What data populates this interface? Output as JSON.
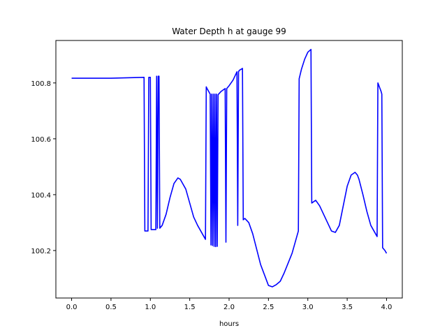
{
  "chart_data": {
    "type": "line",
    "title": "Water Depth h at gauge 99",
    "xlabel": "hours",
    "ylabel": "",
    "xlim": [
      -0.2,
      4.2
    ],
    "ylim": [
      100.03,
      100.952
    ],
    "xticks": [
      0.0,
      0.5,
      1.0,
      1.5,
      2.0,
      2.5,
      3.0,
      3.5,
      4.0
    ],
    "xtick_labels": [
      "0.0",
      "0.5",
      "1.0",
      "1.5",
      "2.0",
      "2.5",
      "3.0",
      "3.5",
      "4.0"
    ],
    "yticks": [
      100.2,
      100.4,
      100.6,
      100.8
    ],
    "ytick_labels": [
      "100.2",
      "100.4",
      "100.6",
      "100.8"
    ],
    "grid": false,
    "legend": "none",
    "series": [
      {
        "color": "#0000ff",
        "x": [
          0.0,
          0.5,
          0.92,
          0.93,
          0.97,
          0.98,
          1.0,
          1.01,
          1.07,
          1.08,
          1.09,
          1.1,
          1.11,
          1.12,
          1.15,
          1.2,
          1.25,
          1.3,
          1.35,
          1.38,
          1.45,
          1.5,
          1.55,
          1.6,
          1.7,
          1.71,
          1.72,
          1.76,
          1.77,
          1.78,
          1.79,
          1.8,
          1.81,
          1.82,
          1.83,
          1.84,
          1.85,
          1.86,
          1.9,
          1.95,
          1.96,
          1.97,
          2.0,
          2.05,
          2.1,
          2.11,
          2.12,
          2.13,
          2.17,
          2.18,
          2.2,
          2.25,
          2.3,
          2.4,
          2.5,
          2.55,
          2.6,
          2.65,
          2.7,
          2.8,
          2.88,
          2.89,
          2.92,
          2.96,
          3.0,
          3.04,
          3.05,
          3.1,
          3.15,
          3.2,
          3.3,
          3.35,
          3.4,
          3.45,
          3.5,
          3.55,
          3.6,
          3.63,
          3.65,
          3.7,
          3.75,
          3.8,
          3.88,
          3.89,
          3.93,
          3.94,
          3.95,
          3.98,
          4.0
        ],
        "y": [
          100.817,
          100.817,
          100.82,
          100.27,
          100.27,
          100.82,
          100.82,
          100.275,
          100.275,
          100.824,
          100.28,
          100.824,
          100.824,
          100.28,
          100.29,
          100.33,
          100.39,
          100.44,
          100.46,
          100.455,
          100.42,
          100.37,
          100.32,
          100.29,
          100.24,
          100.786,
          100.78,
          100.76,
          100.22,
          100.76,
          100.218,
          100.76,
          100.215,
          100.76,
          100.214,
          100.76,
          100.215,
          100.758,
          100.77,
          100.78,
          100.23,
          100.78,
          100.79,
          100.81,
          100.84,
          100.29,
          100.84,
          100.845,
          100.852,
          100.31,
          100.315,
          100.3,
          100.26,
          100.15,
          100.075,
          100.07,
          100.078,
          100.09,
          100.12,
          100.19,
          100.27,
          100.815,
          100.85,
          100.885,
          100.91,
          100.92,
          100.37,
          100.38,
          100.36,
          100.33,
          100.27,
          100.265,
          100.29,
          100.36,
          100.43,
          100.47,
          100.48,
          100.47,
          100.455,
          100.4,
          100.34,
          100.29,
          100.25,
          100.8,
          100.77,
          100.76,
          100.21,
          100.2,
          100.19
        ]
      }
    ]
  }
}
